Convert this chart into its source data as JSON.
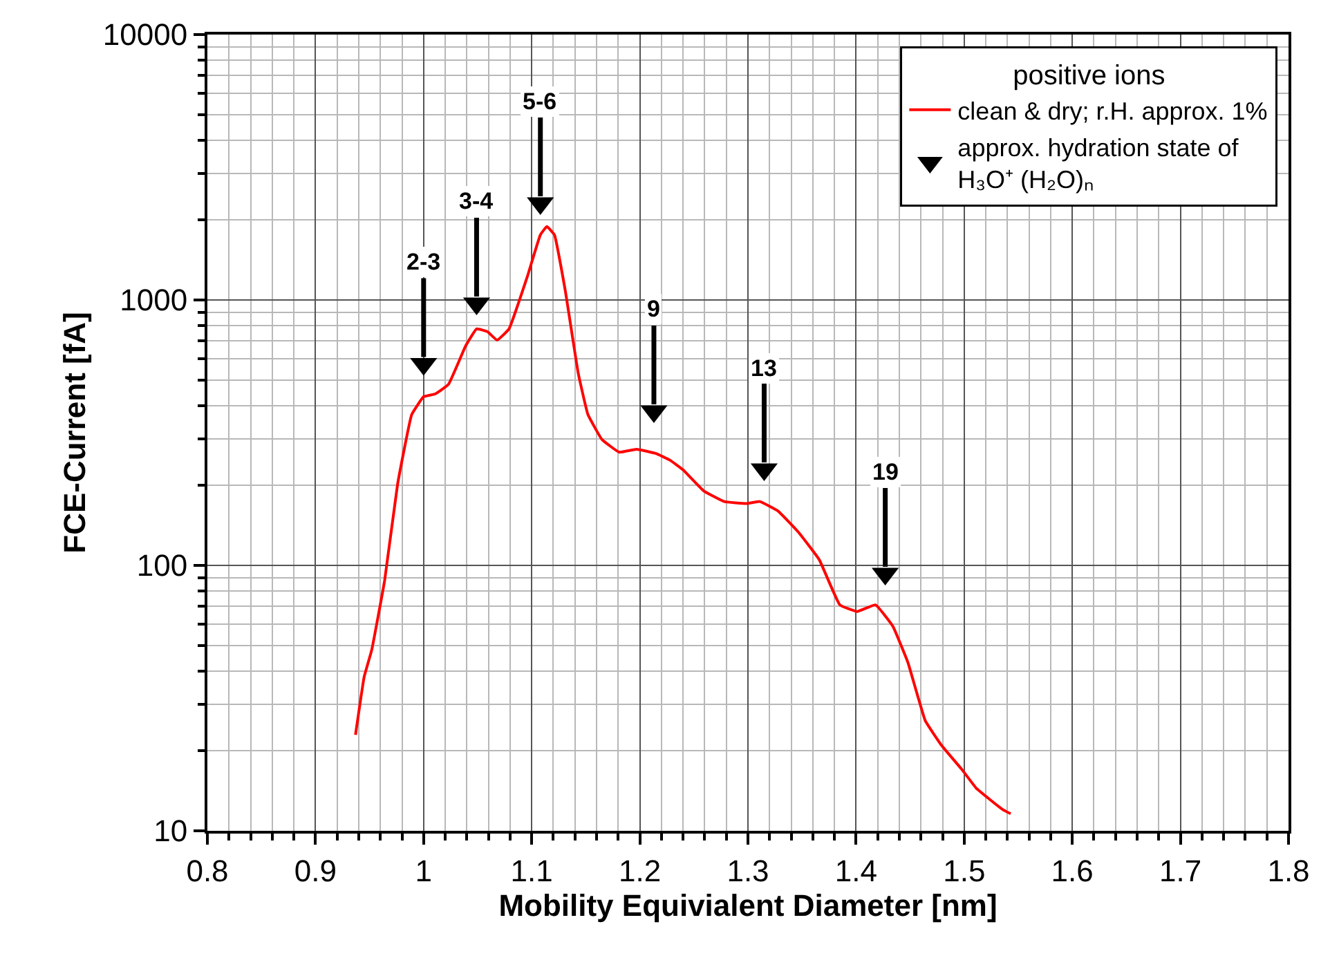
{
  "chart_data": {
    "type": "line",
    "xlabel": "Mobility Equivialent Diameter [nm]",
    "ylabel": "FCE-Current [fA]",
    "legend_title": "positive ions",
    "log": "y",
    "grid": true,
    "legend": "top right",
    "xlim": [
      0.8,
      1.8
    ],
    "xticks": [
      0.8,
      0.9,
      1,
      1.1,
      1.2,
      1.3,
      1.4,
      1.5,
      1.6,
      1.7,
      1.8
    ],
    "ylim": [
      10,
      10000
    ],
    "yticks": [
      10,
      100,
      1000,
      10000
    ],
    "series": [
      {
        "name": "clean & dry; r.H. approx. 1%",
        "color": "#ff0000",
        "line_style": "solid",
        "marker": "none",
        "x": [
          0.937,
          0.945,
          0.952,
          0.964,
          0.976,
          0.989,
          1.0,
          1.011,
          1.023,
          1.039,
          1.049,
          1.059,
          1.068,
          1.079,
          1.096,
          1.108,
          1.114,
          1.121,
          1.131,
          1.143,
          1.152,
          1.165,
          1.181,
          1.197,
          1.215,
          1.228,
          1.24,
          1.259,
          1.278,
          1.299,
          1.311,
          1.328,
          1.347,
          1.366,
          1.385,
          1.401,
          1.418,
          1.434,
          1.448,
          1.464,
          1.479,
          1.498,
          1.511,
          1.523,
          1.536,
          1.543
        ],
        "values": [
          23,
          38,
          48,
          88,
          203,
          370,
          432,
          443,
          481,
          673,
          778,
          760,
          706,
          778,
          1227,
          1760,
          1890,
          1760,
          1087,
          530,
          370,
          298,
          267,
          274,
          264,
          249,
          229,
          191,
          174,
          171,
          174,
          160,
          133,
          105,
          71,
          67,
          71,
          59,
          43,
          26,
          21,
          17,
          14.5,
          13.2,
          12,
          11.6
        ]
      },
      {
        "name": "approx. hydration state of\nH₃O⁺ (H₂O)ₙ",
        "color": "#000000",
        "type": "scatter",
        "marker": "triangle",
        "x": [
          1.0,
          1.049,
          1.108,
          1.213,
          1.315,
          1.427
        ],
        "values": [
          574,
          971,
          2314,
          381,
          230,
          93
        ]
      }
    ],
    "annotations": [
      {
        "text": "2-3",
        "x": 1.0,
        "y": 574
      },
      {
        "text": "3-4",
        "x": 1.049,
        "y": 971
      },
      {
        "text": "5-6",
        "x": 1.108,
        "y": 2314
      },
      {
        "text": "9",
        "x": 1.213,
        "y": 381
      },
      {
        "text": "13",
        "x": 1.315,
        "y": 230
      },
      {
        "text": "19",
        "x": 1.427,
        "y": 93
      }
    ]
  }
}
